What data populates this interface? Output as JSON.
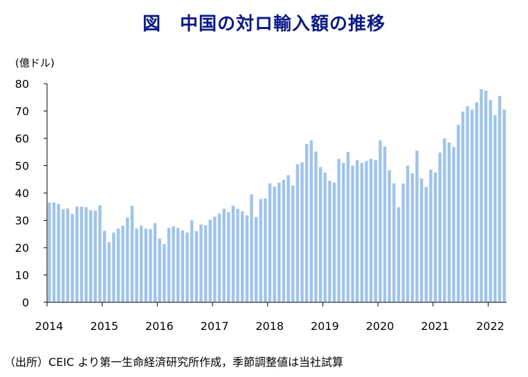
{
  "title": "図　中国の対ロ輸入額の推移",
  "unit": "(億ドル)",
  "note": "（出所）CEIC より第一生命経済研究所作成，季節調整値は当社試算",
  "colors": {
    "bar": "#9DC3F0",
    "axis": "#000000",
    "title": "#0A1A8C"
  },
  "chart_data": {
    "type": "bar",
    "title": "図　中国の対ロ輸入額の推移",
    "ylabel": "(億ドル)",
    "xlabel": "",
    "ylim": [
      0,
      80
    ],
    "yticks": [
      0,
      10,
      20,
      30,
      40,
      50,
      60,
      70,
      80
    ],
    "year_labels": [
      "2014",
      "2015",
      "2016",
      "2017",
      "2018",
      "2019",
      "2020",
      "2021",
      "2022"
    ],
    "start": "2014-01",
    "end": "2022-04",
    "frequency": "monthly",
    "values": [
      36.5,
      36.5,
      36,
      34,
      34.3,
      32.3,
      35,
      35,
      34.8,
      33.7,
      33.5,
      35.5,
      26.2,
      22,
      25.5,
      27,
      28,
      31,
      35.3,
      27,
      28,
      27,
      26.8,
      29,
      23.3,
      21.3,
      27.2,
      27.8,
      27.2,
      26.3,
      25.5,
      30,
      26,
      28.5,
      28.2,
      30.2,
      31.3,
      32.5,
      34.2,
      33,
      35.3,
      34.2,
      33.3,
      31.8,
      39.5,
      31.2,
      37.8,
      38,
      43.5,
      42.3,
      43.8,
      44.8,
      46.5,
      42.7,
      50.5,
      51.2,
      58,
      59.2,
      55.2,
      49.5,
      47.5,
      44.5,
      43.8,
      52.5,
      51,
      55,
      50,
      52,
      51,
      51.7,
      52.5,
      52,
      59.3,
      57,
      48.3,
      43.5,
      34.8,
      43.5,
      50,
      47.2,
      55.5,
      45.3,
      42.2,
      48.5,
      47.5,
      54.8,
      60,
      58.5,
      56.8,
      65,
      69.8,
      71.8,
      70.5,
      73.2,
      78,
      77.5,
      74,
      68.5,
      75.5,
      70.5
    ]
  }
}
